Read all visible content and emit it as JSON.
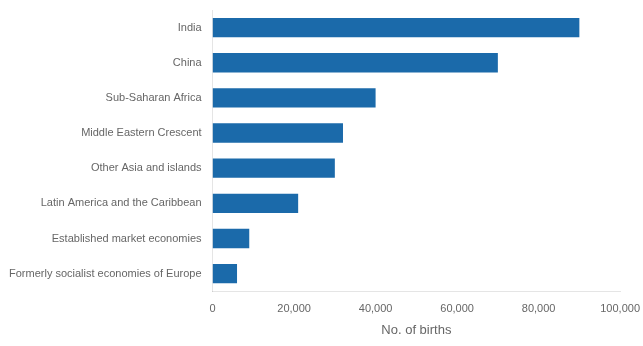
{
  "chart_data": {
    "type": "bar",
    "orientation": "horizontal",
    "categories": [
      "Formerly socialist economies of Europe",
      "Established market economies",
      "Latin America and the Caribbean",
      "Other Asia and islands",
      "Middle Eastern Crescent",
      "Sub-Saharan Africa",
      "China",
      "India"
    ],
    "values": [
      6000,
      9000,
      21000,
      30000,
      32000,
      40000,
      70000,
      90000
    ],
    "color": "#1B6AAA",
    "xlabel": "No. of births",
    "xlim": [
      0,
      100000
    ],
    "xticks": [
      0,
      {
        "value": 20000,
        "label": "20,000"
      },
      {
        "value": 40000,
        "label": "40,000"
      },
      {
        "value": 60000,
        "label": "60,000"
      },
      {
        "value": 80000,
        "label": "80,000"
      },
      {
        "value": 100000,
        "label": "100,000"
      }
    ],
    "grid": false
  }
}
